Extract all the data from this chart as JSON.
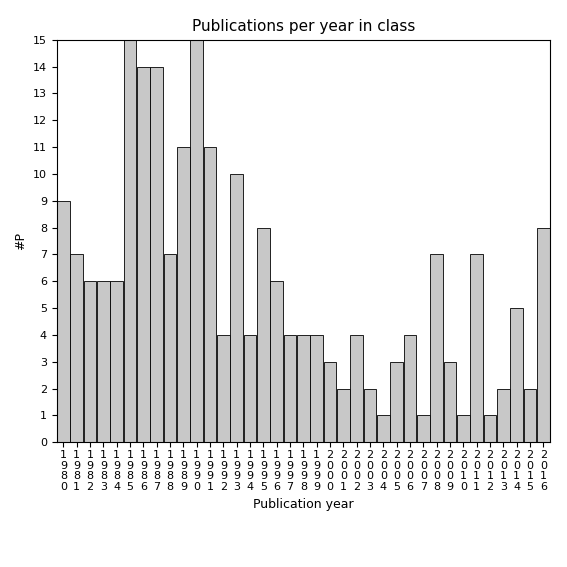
{
  "years": [
    "1980",
    "1981",
    "1982",
    "1983",
    "1984",
    "1985",
    "1986",
    "1987",
    "1988",
    "1989",
    "1990",
    "1991",
    "1992",
    "1993",
    "1994",
    "1995",
    "1996",
    "1997",
    "1998",
    "1999",
    "2000",
    "2001",
    "2002",
    "2003",
    "2004",
    "2005",
    "2006",
    "2007",
    "2008",
    "2009",
    "2010",
    "2011",
    "2012",
    "2013",
    "2014",
    "2015",
    "2016"
  ],
  "values": [
    9,
    7,
    6,
    6,
    6,
    15,
    14,
    14,
    7,
    11,
    15,
    11,
    4,
    10,
    4,
    8,
    6,
    4,
    4,
    4,
    3,
    2,
    4,
    2,
    1,
    3,
    4,
    1,
    7,
    3,
    1,
    7,
    1,
    2,
    5,
    2,
    8
  ],
  "bar_color": "#c8c8c8",
  "bar_edgecolor": "#000000",
  "title": "Publications per year in class",
  "xlabel": "Publication year",
  "ylabel": "#P",
  "ylim": [
    0,
    15
  ],
  "yticks": [
    0,
    1,
    2,
    3,
    4,
    5,
    6,
    7,
    8,
    9,
    10,
    11,
    12,
    13,
    14,
    15
  ],
  "background_color": "#ffffff",
  "title_fontsize": 11,
  "axis_fontsize": 9,
  "tick_fontsize": 8
}
